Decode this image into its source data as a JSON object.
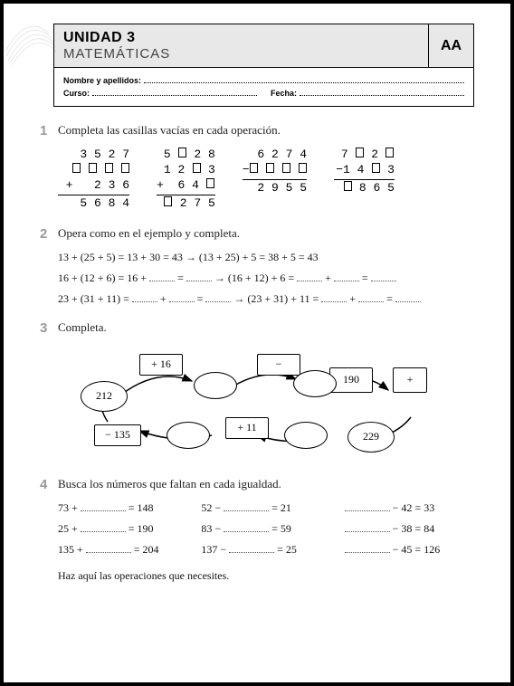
{
  "header": {
    "unit": "UNIDAD 3",
    "subject": "MATEMÁTICAS",
    "code": "AA",
    "name_label": "Nombre y apellidos:",
    "course_label": "Curso:",
    "date_label": "Fecha:"
  },
  "ex1": {
    "num": "1",
    "prompt": "Completa las casillas vacías en cada operación.",
    "problems": [
      {
        "rows": [
          "  3 5 2 7",
          "  □ □ □ □",
          "+   2 3 6",
          "  5 6 8 4"
        ]
      },
      {
        "rows": [
          " 5 □ 2 8",
          " 1 2 □ 3",
          "+  6 4 □",
          " □ 2 7 5"
        ]
      },
      {
        "rows": [
          " 6 2 7 4",
          "−□ □ □ □",
          " 2 9 5 5"
        ]
      },
      {
        "rows": [
          " 7 □ 2 □",
          "−1 4 □ 3",
          " □ 8 6 5"
        ]
      }
    ]
  },
  "ex2": {
    "num": "2",
    "prompt": "Opera como en el ejemplo y completa.",
    "example": "13 + (25 + 5) = 13 + 30 = 43 → (13 + 25) + 5 = 38 + 5 = 43",
    "line2a": "16 + (12 + 6)   =    16   + ",
    "line2b": " = ",
    "line2c": " → (16 + 12) +  6  = ",
    "line2d": " + ",
    "line2e": " = ",
    "line3a": "23 + (31 + 11) = ",
    "line3b": " + ",
    "line3c": " = ",
    "line3d": " → (23 + 31) + 11 = ",
    "line3e": " +  ",
    "line3f": " = "
  },
  "ex3": {
    "num": "3",
    "prompt": "Completa.",
    "nodes": {
      "r1": "+ 16",
      "r2": "−",
      "r3": "190",
      "r4": "+",
      "o1": "212",
      "o2": "",
      "o3": "",
      "o4": "",
      "r5": "− 135",
      "r6": "+ 11",
      "o5": "",
      "o6": "229"
    }
  },
  "ex4": {
    "num": "4",
    "prompt": "Busca los números que faltan en cada igualdad.",
    "cells": [
      {
        "pre": "73 + ",
        "post": "  = 148"
      },
      {
        "pre": "52 − ",
        "post": " = 21"
      },
      {
        "pre": "",
        "post": " − 42 = 33"
      },
      {
        "pre": "25 + ",
        "post": "  = 190"
      },
      {
        "pre": "83 − ",
        "post": " = 59"
      },
      {
        "pre": "",
        "post": " − 38 = 84"
      },
      {
        "pre": "135 + ",
        "post": "  = 204"
      },
      {
        "pre": "137 − ",
        "post": " = 25"
      },
      {
        "pre": "",
        "post": " − 45 = 126"
      }
    ],
    "footer": "Haz aquí las operaciones que necesites."
  }
}
